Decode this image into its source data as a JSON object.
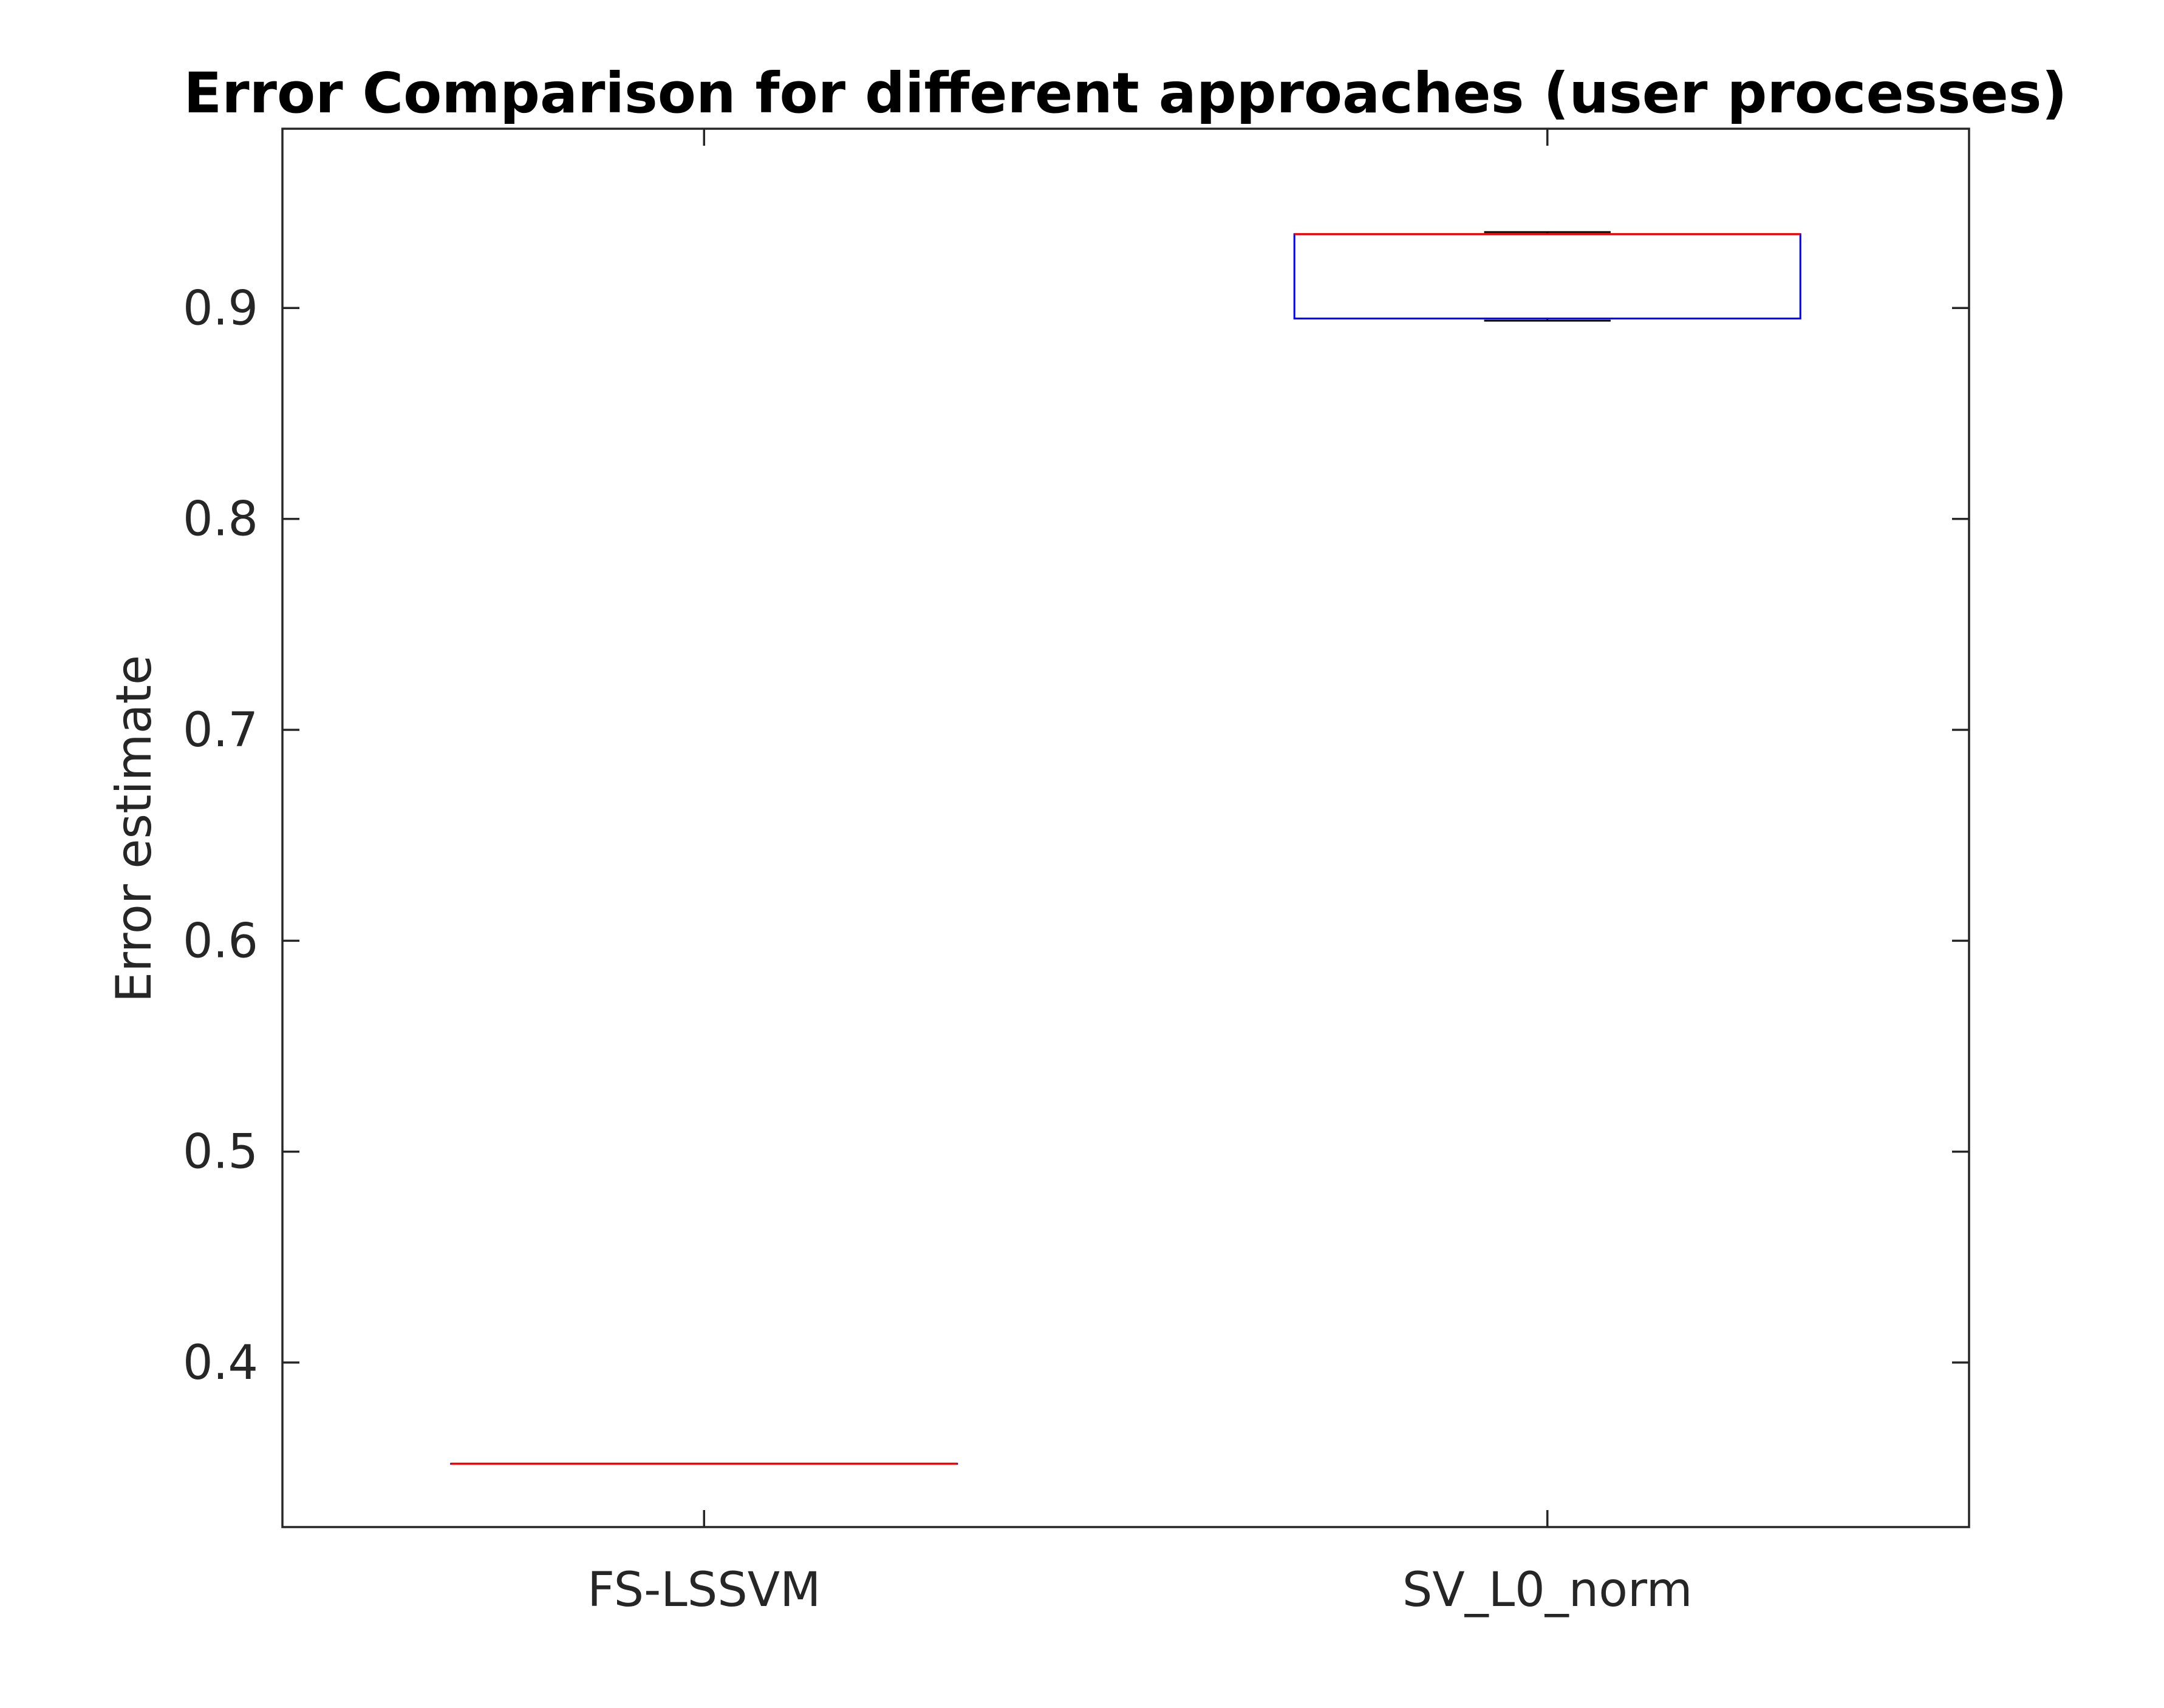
{
  "chart_data": {
    "type": "box",
    "title": "Error Comparison for different approaches (user processes)",
    "xlabel": "",
    "ylabel": "Error estimate",
    "ylim": [
      0.322,
      0.985
    ],
    "yticks": [
      0.4,
      0.5,
      0.6,
      0.7,
      0.8,
      0.9
    ],
    "ytick_labels": [
      "0.4",
      "0.5",
      "0.6",
      "0.7",
      "0.8",
      "0.9"
    ],
    "categories": [
      "FS-LSSVM",
      "SV_L0_norm"
    ],
    "boxes": [
      {
        "category": "FS-LSSVM",
        "min": 0.352,
        "q1": 0.352,
        "median": 0.352,
        "q3": 0.352,
        "max": 0.352
      },
      {
        "category": "SV_L0_norm",
        "min": 0.894,
        "q1": 0.895,
        "median": 0.935,
        "q3": 0.935,
        "max": 0.936
      }
    ],
    "grid": false,
    "colors": {
      "box": "#0000ff",
      "median": "#ff0000",
      "whisker": "#000000",
      "axis": "#262626"
    }
  }
}
